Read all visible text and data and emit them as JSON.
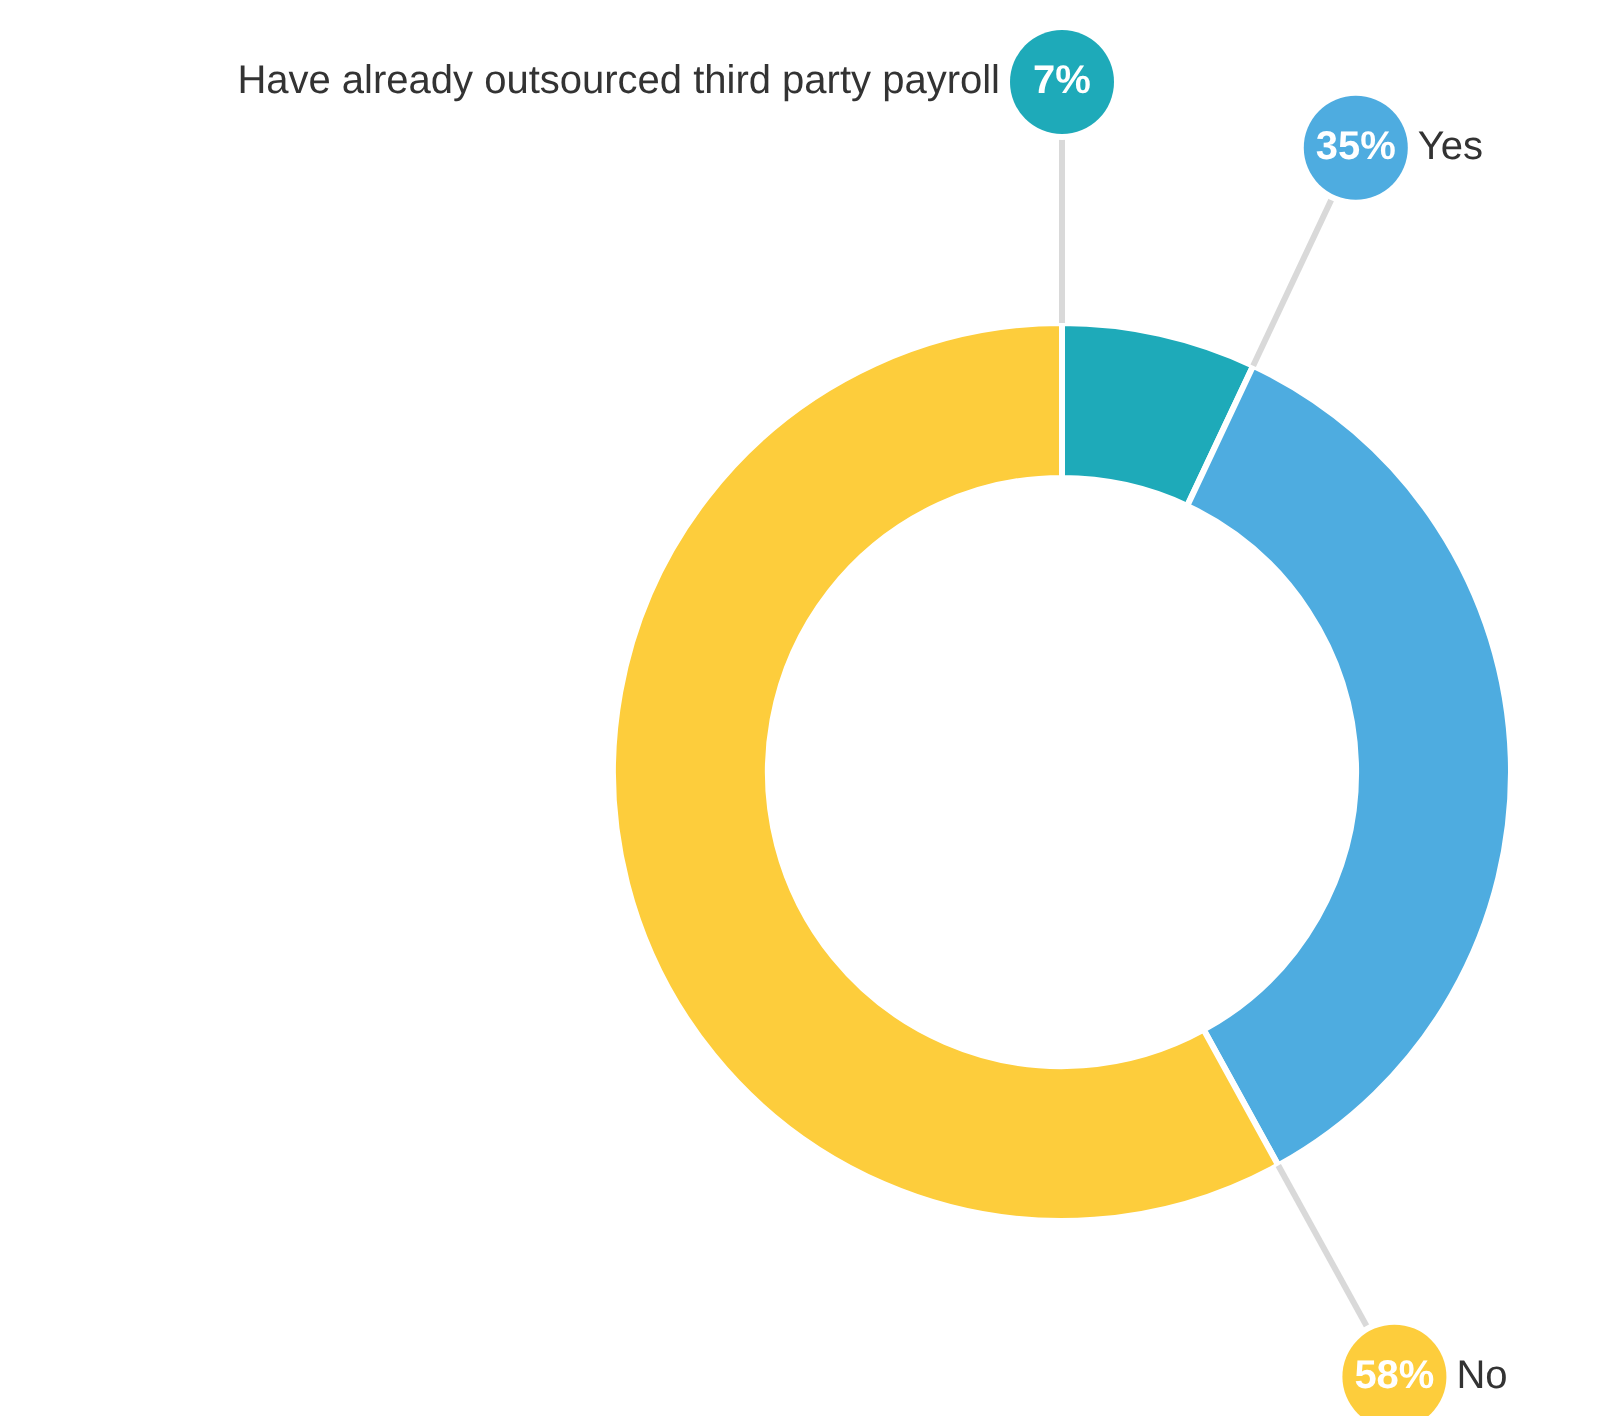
{
  "chart_data": {
    "type": "donut",
    "categories": [
      "Have already outsourced third party payroll",
      "Yes",
      "No"
    ],
    "values": [
      7,
      35,
      58
    ],
    "colors": [
      "#1eaab9",
      "#4eace0",
      "#fdcd3c"
    ],
    "value_labels": [
      "7%",
      "35%",
      "58%"
    ],
    "legend": false
  }
}
